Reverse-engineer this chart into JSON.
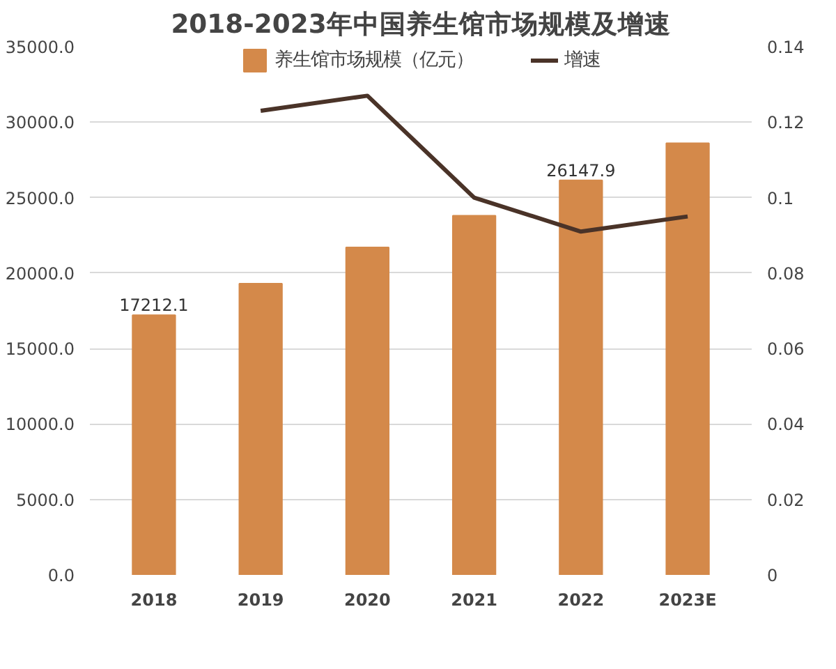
{
  "chart_data": {
    "type": "bar",
    "title": "2018-2023年中国养生馆市场规模及增速",
    "categories": [
      "2018",
      "2019",
      "2020",
      "2021",
      "2022",
      "2023E"
    ],
    "series": [
      {
        "name": "养生馆市场规模（亿元）",
        "color": "#d4894a",
        "values": [
          17212.1,
          19300,
          21700,
          23800,
          26147.9,
          28600
        ],
        "value_labels": [
          "17212.1",
          null,
          null,
          null,
          "26147.9",
          null
        ]
      },
      {
        "name": "增速",
        "type": "line",
        "axis": "y2",
        "color": "#4a3328",
        "values": [
          null,
          0.123,
          0.127,
          0.1,
          0.091,
          0.095
        ]
      }
    ],
    "ylim": [
      0,
      35000
    ],
    "yticks": [
      {
        "value": 0,
        "label": "0.0"
      },
      {
        "value": 5000,
        "label": "5000.0"
      },
      {
        "value": 10000,
        "label": "10000.0"
      },
      {
        "value": 15000,
        "label": "15000.0"
      },
      {
        "value": 20000,
        "label": "20000.0"
      },
      {
        "value": 25000,
        "label": "25000.0"
      },
      {
        "value": 30000,
        "label": "30000.0"
      },
      {
        "value": 35000,
        "label": "35000.0"
      }
    ],
    "y2lim": [
      0,
      0.14
    ],
    "y2ticks": [
      0,
      0.02,
      0.04,
      0.06,
      0.08,
      0.1,
      0.12,
      0.14
    ],
    "grid": "y",
    "legend": "top",
    "marker": "none",
    "line_style": "solid"
  }
}
